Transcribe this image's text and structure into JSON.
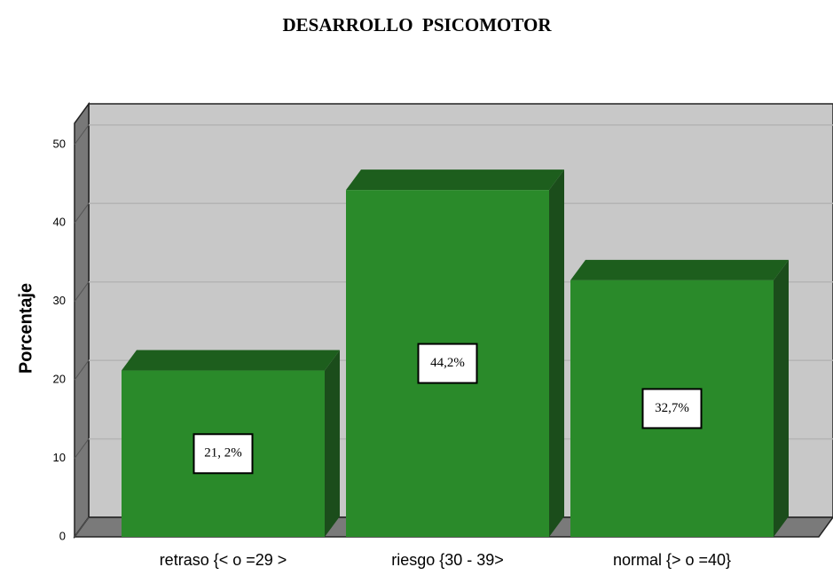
{
  "chart_data": {
    "type": "bar3d",
    "title": "DESARROLLO  PSICOMOTOR",
    "y_label": "Porcentaje",
    "categories": [
      "retraso {< o =29 >",
      "riesgo {30 - 39>",
      "normal {> o =40}"
    ],
    "values": [
      21.2,
      44.2,
      32.7
    ],
    "value_labels": [
      "21, 2%",
      "44,2%",
      "32,7%"
    ],
    "color": "#2a8a2a",
    "ylim": [
      0,
      52.7
    ],
    "yticks": [
      0,
      10,
      20,
      30,
      40,
      50
    ],
    "grid": true
  }
}
